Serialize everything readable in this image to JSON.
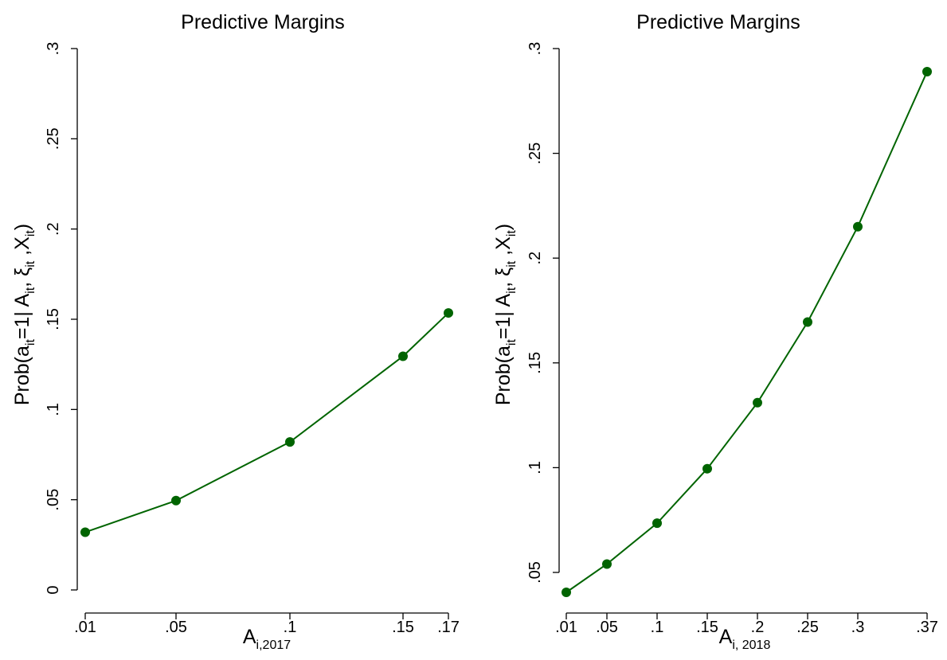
{
  "chart_data": [
    {
      "type": "line",
      "title": "Predictive Margins",
      "xlabel": {
        "main": "A",
        "sub": "i,2017"
      },
      "ylabel": "Prob(a=1| A, ξ , X)",
      "ylabel_parts": [
        "Prob(a",
        "it",
        "=1| A",
        "it",
        ", ξ",
        "it",
        " ,X",
        "it",
        ")"
      ],
      "x": [
        0.01,
        0.05,
        0.1,
        0.15,
        0.17
      ],
      "x_tick_labels": [
        ".01",
        ".05",
        ".1",
        ".15",
        ".17"
      ],
      "y": [
        0.032,
        0.0495,
        0.082,
        0.1295,
        0.1535
      ],
      "y_ticks": [
        0,
        0.05,
        0.1,
        0.15,
        0.2,
        0.25,
        0.3
      ],
      "y_tick_labels": [
        "0",
        ".05",
        ".1",
        ".15",
        ".2",
        ".25",
        ".3"
      ],
      "ylim": [
        0,
        0.3
      ],
      "xlim": [
        0.01,
        0.17
      ],
      "grid": false,
      "color": "#006400"
    },
    {
      "type": "line",
      "title": "Predictive Margins",
      "xlabel": {
        "main": "A",
        "sub": "i, 2018"
      },
      "ylabel": "Prob(a=1| A, ξ , X)",
      "ylabel_parts": [
        "Prob(a",
        "it",
        "=1| A",
        "it",
        ", ξ",
        "it",
        " ,X",
        "it",
        ")"
      ],
      "x": [
        0.01,
        0.05,
        0.1,
        0.15,
        0.2,
        0.25,
        0.3,
        0.37
      ],
      "x_tick_labels": [
        ".01",
        ".05",
        ".1",
        ".15",
        ".2",
        ".25",
        ".3",
        ".37"
      ],
      "y": [
        0.0405,
        0.054,
        0.0735,
        0.0995,
        0.131,
        0.1695,
        0.215,
        0.289
      ],
      "y_ticks": [
        0.05,
        0.1,
        0.15,
        0.2,
        0.25,
        0.3
      ],
      "y_tick_labels": [
        ".05",
        ".1",
        ".15",
        ".2",
        ".25",
        ".3"
      ],
      "ylim": [
        0.05,
        0.3
      ],
      "xlim": [
        0.01,
        0.37
      ],
      "grid": false,
      "color": "#006400"
    }
  ]
}
